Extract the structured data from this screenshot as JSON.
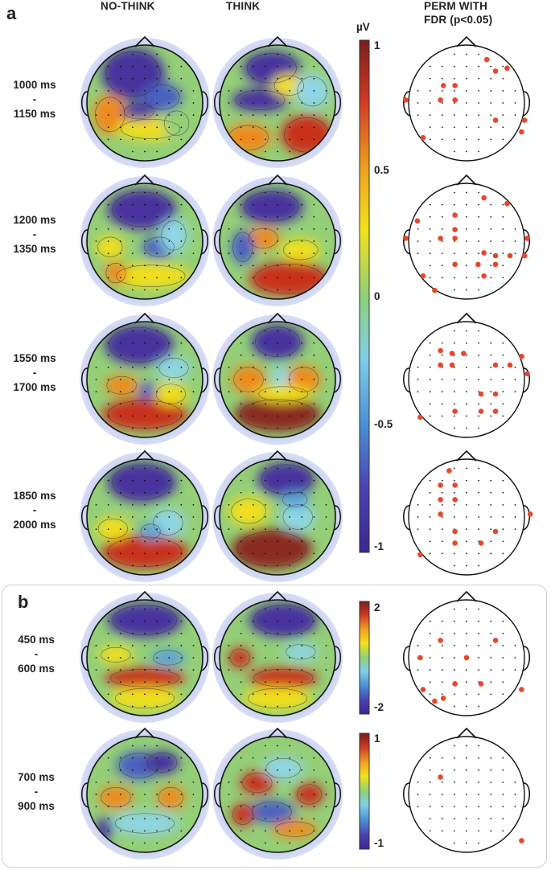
{
  "panel_a": {
    "letter": "a",
    "column_headers": {
      "no_think": "NO-THINK",
      "think": "THINK",
      "perm_line1": "PERM WITH",
      "perm_line2": "FDR (p<0.05)"
    },
    "rows": [
      {
        "start": "1000 ms",
        "dash": "-",
        "end": "1150 ms"
      },
      {
        "start": "1200 ms",
        "dash": "-",
        "end": "1350 ms"
      },
      {
        "start": "1550 ms",
        "dash": "-",
        "end": "1700 ms"
      },
      {
        "start": "1850 ms",
        "dash": "-",
        "end": "2000 ms"
      }
    ],
    "colorbar": {
      "unit": "µV",
      "ticks": [
        "1",
        "0.5",
        "0",
        "-0.5",
        "-1"
      ]
    }
  },
  "panel_b": {
    "letter": "b",
    "rows": [
      {
        "start": "450 ms",
        "dash": "-",
        "end": "600 ms",
        "colorbar_ticks": [
          "2",
          "-2"
        ]
      },
      {
        "start": "700 ms",
        "dash": "-",
        "end": "900 ms",
        "colorbar_ticks": [
          "1",
          "-1"
        ]
      }
    ]
  },
  "colors": {
    "high": "#b2182b",
    "mid": "#7fd07a",
    "low": "#4b2f9c",
    "head_halo": "#c4cdef",
    "significant_electrode": "#e8472b"
  }
}
